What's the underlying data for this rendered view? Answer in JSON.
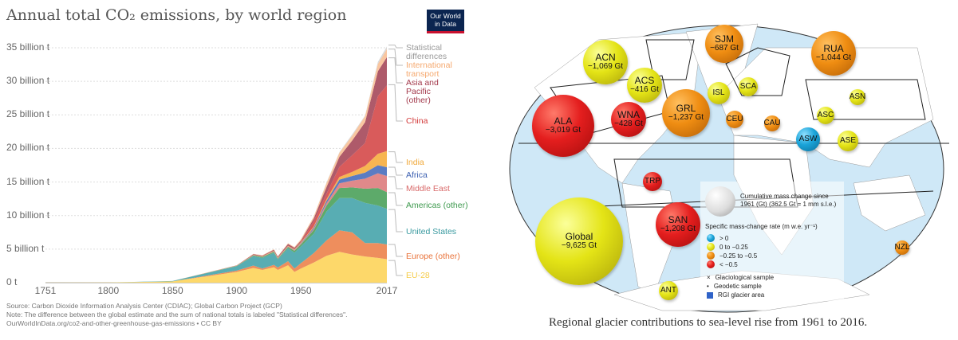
{
  "chart_data": {
    "type": "area",
    "title": "Annual total CO₂ emissions, by world region",
    "logo": "Our World in Data",
    "xlabel": "",
    "ylabel": "",
    "ylim": [
      0,
      35
    ],
    "xlim": [
      1751,
      2017
    ],
    "y_ticks": [
      "0 t",
      "5 billion t",
      "10 billion t",
      "15 billion t",
      "20 billion t",
      "25 billion t",
      "30 billion t",
      "35 billion t"
    ],
    "x_ticks": [
      "1751",
      "1800",
      "1850",
      "1900",
      "1950",
      "2017"
    ],
    "grid": true,
    "legend_placement": "right",
    "x": [
      1751,
      1800,
      1850,
      1900,
      1913,
      1920,
      1929,
      1932,
      1940,
      1945,
      1950,
      1960,
      1970,
      1980,
      1990,
      2000,
      2010,
      2017
    ],
    "series": [
      {
        "name": "EU-28",
        "color": "#fdd86a",
        "values": [
          0.01,
          0.03,
          0.19,
          1.6,
          2.2,
          1.9,
          2.3,
          1.9,
          2.6,
          1.6,
          2.1,
          3.0,
          4.0,
          4.6,
          4.2,
          3.9,
          3.7,
          3.5
        ]
      },
      {
        "name": "Europe (other)",
        "color": "#ee8e5d",
        "values": [
          0,
          0,
          0.01,
          0.2,
          0.35,
          0.2,
          0.35,
          0.35,
          0.6,
          0.5,
          0.8,
          1.4,
          2.3,
          3.2,
          3.3,
          2.0,
          2.2,
          2.2
        ]
      },
      {
        "name": "United States",
        "color": "#58adb3",
        "values": [
          0,
          0,
          0.05,
          0.66,
          1.4,
          1.6,
          1.8,
          1.2,
          1.9,
          2.4,
          2.5,
          2.9,
          4.3,
          4.8,
          5.1,
          6.0,
          5.6,
          5.3
        ]
      },
      {
        "name": "Americas (other)",
        "color": "#5daa6a",
        "values": [
          0,
          0,
          0,
          0.04,
          0.1,
          0.12,
          0.15,
          0.12,
          0.2,
          0.25,
          0.3,
          0.55,
          0.9,
          1.5,
          1.6,
          2.1,
          2.6,
          2.5
        ]
      },
      {
        "name": "Middle East",
        "color": "#e0898a",
        "values": [
          0,
          0,
          0,
          0,
          0,
          0.01,
          0.02,
          0.02,
          0.03,
          0.05,
          0.08,
          0.15,
          0.35,
          0.7,
          1.0,
          1.5,
          2.2,
          2.4
        ]
      },
      {
        "name": "Africa",
        "color": "#5a7cc3",
        "values": [
          0,
          0,
          0,
          0.01,
          0.03,
          0.03,
          0.04,
          0.04,
          0.05,
          0.06,
          0.1,
          0.2,
          0.35,
          0.55,
          0.7,
          0.9,
          1.2,
          1.3
        ]
      },
      {
        "name": "India",
        "color": "#f7b551",
        "values": [
          0,
          0,
          0,
          0.02,
          0.05,
          0.06,
          0.07,
          0.07,
          0.09,
          0.1,
          0.1,
          0.15,
          0.25,
          0.4,
          0.6,
          1.0,
          1.7,
          2.4
        ]
      },
      {
        "name": "China",
        "color": "#d95b5b",
        "values": [
          0,
          0,
          0,
          0.01,
          0.02,
          0.02,
          0.03,
          0.03,
          0.05,
          0.05,
          0.08,
          0.8,
          0.8,
          1.5,
          2.5,
          3.4,
          8.6,
          9.8
        ]
      },
      {
        "name": "Asia and Pacific (other)",
        "color": "#ae5a6a",
        "values": [
          0,
          0,
          0,
          0.04,
          0.1,
          0.1,
          0.15,
          0.15,
          0.25,
          0.2,
          0.2,
          0.4,
          1.0,
          1.5,
          2.2,
          3.1,
          3.7,
          4.2
        ]
      },
      {
        "name": "International transport",
        "color": "#f9c6a0",
        "values": [
          0,
          0,
          0,
          0.02,
          0.05,
          0.05,
          0.08,
          0.07,
          0.1,
          0.1,
          0.2,
          0.3,
          0.6,
          0.6,
          0.7,
          0.9,
          1.1,
          1.2
        ]
      },
      {
        "name": "Statistical differences",
        "color": "#d8d8d8",
        "values": [
          0,
          0,
          0,
          0,
          0,
          0,
          0,
          0,
          0,
          0,
          0,
          0,
          0.1,
          0.1,
          0.2,
          0.1,
          0.3,
          0.4
        ]
      }
    ],
    "legend_labels": [
      {
        "text": "Statistical differences",
        "color": "#999999"
      },
      {
        "text": "International transport",
        "color": "#f5a86e"
      },
      {
        "text": "Asia and Pacific (other)",
        "color": "#a33a4c"
      },
      {
        "text": "China",
        "color": "#d33a3a"
      },
      {
        "text": "India",
        "color": "#f1a93a"
      },
      {
        "text": "Africa",
        "color": "#3b5fb0"
      },
      {
        "text": "Middle East",
        "color": "#d96a6a"
      },
      {
        "text": "Americas (other)",
        "color": "#3f9a4f"
      },
      {
        "text": "United States",
        "color": "#3a9aa0"
      },
      {
        "text": "Europe (other)",
        "color": "#e9743c"
      },
      {
        "text": "EU-28",
        "color": "#f5cc4a"
      }
    ],
    "footer": [
      "Source: Carbon Dioxide Information Analysis Center (CDIAC); Global Carbon Project (GCP)",
      "Note: The difference between the global estimate and the sum of national totals is labeled \"Statistical differences\".",
      "OurWorldInData.org/co2-and-other-greenhouse-gas-emissions • CC BY"
    ]
  },
  "glacier_map": {
    "caption": "Regional glacier contributions to sea-level rise from 1961 to 2016.",
    "bubbles": [
      {
        "name": "ALA",
        "value": "−3,019 Gt",
        "category": "red"
      },
      {
        "name": "ACN",
        "value": "−1,069 Gt",
        "category": "yellow"
      },
      {
        "name": "ACS",
        "value": "−416 Gt",
        "category": "yellow"
      },
      {
        "name": "WNA",
        "value": "−428 Gt",
        "category": "red"
      },
      {
        "name": "GRL",
        "value": "−1,237 Gt",
        "category": "orange"
      },
      {
        "name": "SJM",
        "value": "−687 Gt",
        "category": "orange"
      },
      {
        "name": "ISL",
        "value": "",
        "category": "yellow"
      },
      {
        "name": "SCA",
        "value": "",
        "category": "yellow"
      },
      {
        "name": "CEU",
        "value": "",
        "category": "orange"
      },
      {
        "name": "RUA",
        "value": "−1,044 Gt",
        "category": "orange"
      },
      {
        "name": "CAU",
        "value": "",
        "category": "orange"
      },
      {
        "name": "ASC",
        "value": "",
        "category": "yellow"
      },
      {
        "name": "ASN",
        "value": "",
        "category": "yellow"
      },
      {
        "name": "ASW",
        "value": "",
        "category": "blue"
      },
      {
        "name": "ASE",
        "value": "",
        "category": "yellow"
      },
      {
        "name": "TRP",
        "value": "",
        "category": "red"
      },
      {
        "name": "SAN",
        "value": "−1,208 Gt",
        "category": "red"
      },
      {
        "name": "Global",
        "value": "−9,625 Gt",
        "category": "yellow"
      },
      {
        "name": "ANT",
        "value": "",
        "category": "yellow"
      },
      {
        "name": "NZL",
        "value": "",
        "category": "orange"
      }
    ],
    "legend": {
      "size_title": "Cumulative mass change since 1961 (Gt) (362.5 Gt = 1 mm s.l.e.)",
      "rate_title": "Specific mass-change rate (m w.e. yr⁻¹)",
      "rate_items": [
        {
          "label": "> 0",
          "category": "blue"
        },
        {
          "label": "0 to −0.25",
          "category": "yellow"
        },
        {
          "label": "−0.25 to −0.5",
          "category": "orange"
        },
        {
          "label": "< −0.5",
          "category": "red"
        }
      ],
      "symbols": [
        "Glaciological sample",
        "Geodetic sample",
        "RGI glacier area"
      ]
    },
    "colors": {
      "ocean": "#cfe8f7",
      "land": "#ffffff",
      "glacier": "#2f63c8"
    }
  }
}
